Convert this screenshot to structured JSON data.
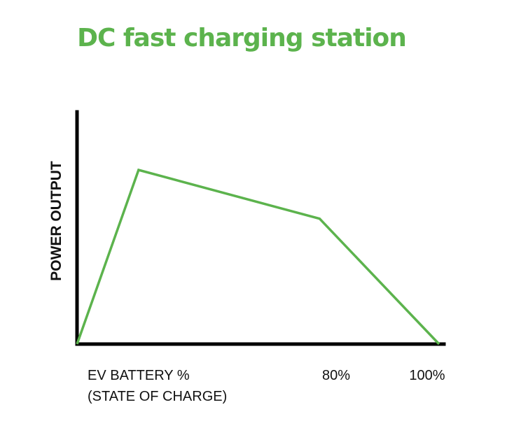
{
  "chart_data": {
    "type": "line",
    "title": "DC fast charging station",
    "ylabel": "POWER OUTPUT",
    "xlabel_lines": [
      "EV BATTERY %",
      "(STATE OF CHARGE)"
    ],
    "x": [
      0,
      17,
      67,
      100
    ],
    "values": [
      0,
      75,
      54,
      0
    ],
    "xlim": [
      0,
      100
    ],
    "ylim": [
      0,
      100
    ],
    "x_ticks": [
      {
        "value": 80,
        "label": "80%"
      },
      {
        "value": 100,
        "label": "100%"
      }
    ],
    "grid": false,
    "color": "#5cb34d"
  }
}
